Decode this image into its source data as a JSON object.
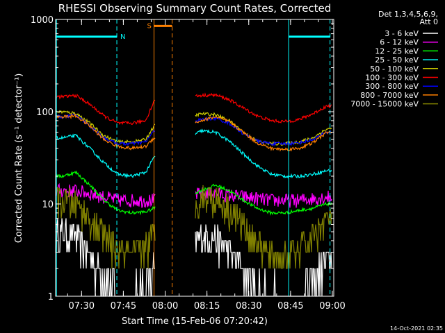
{
  "chart_data": {
    "type": "line",
    "title": "RHESSI Observing Summary Count Rates, Corrected",
    "xlabel": "Start Time (15-Feb-06 07:20:42)",
    "ylabel": "Corrected Count Rate (s⁻¹ detector⁻¹)",
    "y_scale": "log",
    "ylim": [
      1,
      1000
    ],
    "xlim": [
      "07:20:42",
      "09:00:30"
    ],
    "x_ticks": [
      "07:30",
      "07:45",
      "08:00",
      "08:15",
      "08:30",
      "08:45",
      "09:00"
    ],
    "y_ticks": [
      "1",
      "10",
      "100",
      "1000"
    ],
    "legend_header": [
      "Det 1,3,4,5,6,9,",
      "Att 0"
    ],
    "legend_position": "right",
    "timestamp": "14-Oct-2021 02:35",
    "series": [
      {
        "name": "3 - 6 keV",
        "color": "#ffffff",
        "x": [
          "07:23",
          "07:28",
          "07:33",
          "07:38",
          "07:43",
          "07:48",
          "07:53",
          "07:56",
          "08:13",
          "08:18",
          "08:23",
          "08:28",
          "08:33",
          "08:38",
          "08:43",
          "08:48",
          "08:53",
          "08:58"
        ],
        "values": [
          5,
          4.5,
          2.8,
          1.7,
          1.2,
          1.1,
          1.3,
          2.0,
          4.5,
          4.2,
          3.0,
          2.0,
          1.3,
          1.1,
          1.1,
          1.2,
          1.5,
          2.5
        ]
      },
      {
        "name": "6 - 12 keV",
        "color": "#ff00ff",
        "x": [
          "07:23",
          "07:28",
          "07:33",
          "07:38",
          "07:43",
          "07:48",
          "07:53",
          "07:56",
          "08:13",
          "08:18",
          "08:23",
          "08:28",
          "08:33",
          "08:38",
          "08:43",
          "08:48",
          "08:53",
          "08:58"
        ],
        "values": [
          14,
          14,
          13,
          12,
          11,
          11,
          11,
          11,
          13,
          13,
          12.5,
          12,
          11.5,
          11,
          11,
          11,
          11.5,
          12
        ]
      },
      {
        "name": "12 - 25 keV",
        "color": "#00ff00",
        "x": [
          "07:23",
          "07:28",
          "07:33",
          "07:38",
          "07:43",
          "07:48",
          "07:53",
          "07:56",
          "08:13",
          "08:18",
          "08:23",
          "08:28",
          "08:33",
          "08:38",
          "08:43",
          "08:48",
          "08:53",
          "08:58"
        ],
        "values": [
          20,
          22,
          16,
          11,
          8.5,
          8,
          8.2,
          9,
          14,
          16,
          14,
          11,
          9,
          8,
          8,
          8.5,
          9,
          10
        ]
      },
      {
        "name": "25 - 50 keV",
        "color": "#00ffff",
        "x": [
          "07:23",
          "07:28",
          "07:33",
          "07:38",
          "07:43",
          "07:48",
          "07:53",
          "07:56",
          "08:13",
          "08:18",
          "08:23",
          "08:28",
          "08:33",
          "08:38",
          "08:43",
          "08:48",
          "08:53",
          "08:58"
        ],
        "values": [
          52,
          55,
          40,
          28,
          21,
          20,
          22,
          32,
          62,
          60,
          48,
          35,
          26,
          21,
          20,
          20,
          21,
          23
        ]
      },
      {
        "name": "50 - 100 keV",
        "color": "#cccc00",
        "x": [
          "07:23",
          "07:28",
          "07:33",
          "07:38",
          "07:43",
          "07:48",
          "07:53",
          "07:56",
          "08:13",
          "08:18",
          "08:23",
          "08:28",
          "08:33",
          "08:38",
          "08:43",
          "08:48",
          "08:53",
          "08:58"
        ],
        "values": [
          100,
          96,
          75,
          55,
          47,
          47,
          50,
          70,
          95,
          93,
          80,
          60,
          48,
          45,
          45,
          47,
          52,
          65
        ]
      },
      {
        "name": "100 - 300 keV",
        "color": "#ff0000",
        "x": [
          "07:23",
          "07:28",
          "07:33",
          "07:38",
          "07:43",
          "07:48",
          "07:53",
          "07:56",
          "08:13",
          "08:18",
          "08:23",
          "08:28",
          "08:33",
          "08:38",
          "08:43",
          "08:48",
          "08:53",
          "08:58"
        ],
        "values": [
          145,
          150,
          120,
          90,
          75,
          75,
          80,
          130,
          150,
          152,
          135,
          110,
          90,
          80,
          78,
          82,
          95,
          115
        ]
      },
      {
        "name": "300 - 800 keV",
        "color": "#0000ff",
        "x": [
          "07:23",
          "07:28",
          "07:33",
          "07:38",
          "07:43",
          "07:48",
          "07:53",
          "07:56",
          "08:13",
          "08:18",
          "08:23",
          "08:28",
          "08:33",
          "08:38",
          "08:43",
          "08:48",
          "08:53",
          "08:58"
        ],
        "values": [
          88,
          92,
          70,
          52,
          45,
          45,
          47,
          62,
          82,
          85,
          75,
          58,
          48,
          45,
          45,
          46,
          50,
          60
        ]
      },
      {
        "name": "800 - 7000 keV",
        "color": "#ff8000",
        "x": [
          "07:23",
          "07:28",
          "07:33",
          "07:38",
          "07:43",
          "07:48",
          "07:53",
          "07:56",
          "08:13",
          "08:18",
          "08:23",
          "08:28",
          "08:33",
          "08:38",
          "08:43",
          "08:48",
          "08:53",
          "08:58"
        ],
        "values": [
          88,
          90,
          70,
          50,
          42,
          40,
          42,
          52,
          80,
          88,
          78,
          60,
          46,
          40,
          39,
          40,
          46,
          60
        ]
      },
      {
        "name": "7000 - 15000 keV",
        "color": "#808000",
        "x": [
          "07:23",
          "07:28",
          "07:33",
          "07:38",
          "07:43",
          "07:48",
          "07:53",
          "07:56",
          "08:13",
          "08:18",
          "08:23",
          "08:28",
          "08:33",
          "08:38",
          "08:43",
          "08:48",
          "08:53",
          "08:58"
        ],
        "values": [
          11,
          10,
          7,
          4.5,
          3.2,
          2.8,
          3.5,
          5,
          12,
          12,
          9,
          6,
          3.8,
          2.8,
          2.7,
          3.2,
          4.5,
          7
        ]
      }
    ],
    "annotations": [
      {
        "label": "N",
        "color": "#00ffff",
        "start": "07:20:42",
        "end": "07:42:40",
        "level": 650
      },
      {
        "label": "",
        "color": "#00ffff",
        "start": "08:44:20",
        "end": "08:59:10",
        "level": 650
      },
      {
        "label": "S",
        "color": "#ff8000",
        "start": "07:56:00",
        "end": "08:02:30",
        "level": 850
      }
    ],
    "vertical_markers": [
      {
        "time": "07:21:00",
        "color": "#00ffff",
        "style": "solid"
      },
      {
        "time": "07:42:40",
        "color": "#00ffff",
        "style": "dashed"
      },
      {
        "time": "07:56:00",
        "color": "#ff8000",
        "style": "solid"
      },
      {
        "time": "08:02:30",
        "color": "#ff8000",
        "style": "dashed"
      },
      {
        "time": "08:44:20",
        "color": "#00ffff",
        "style": "solid"
      },
      {
        "time": "08:59:10",
        "color": "#00ffff",
        "style": "dashed"
      }
    ],
    "data_gap": [
      "07:56:30",
      "08:10:30"
    ]
  }
}
